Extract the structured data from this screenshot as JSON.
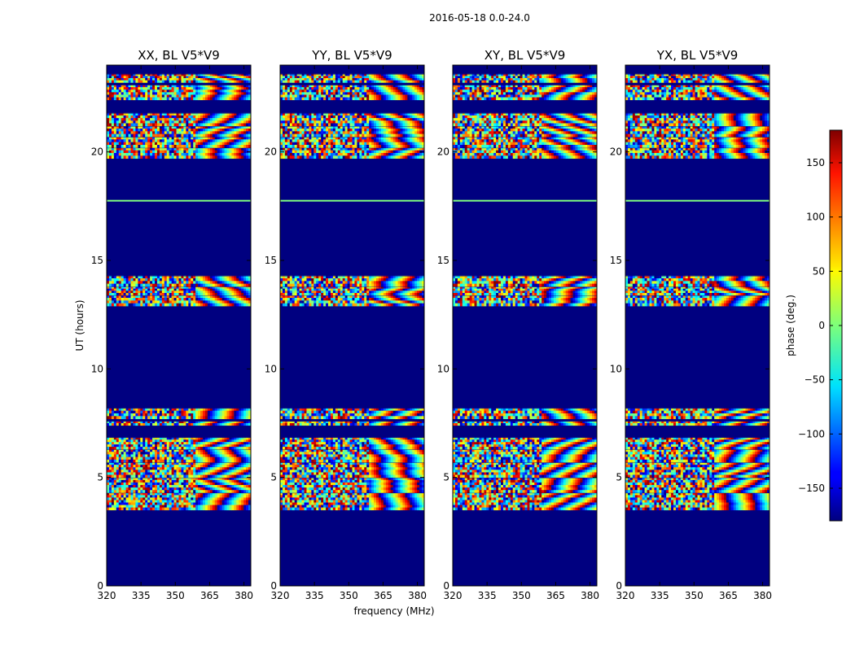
{
  "figure": {
    "suptitle": "2016-05-18 0.0-24.0"
  },
  "chart_data": {
    "type": "heatmap",
    "title": "2016-05-18 0.0-24.0",
    "xlabel": "frequency (MHz)",
    "ylabel": "UT (hours)",
    "xlim": [
      320,
      383
    ],
    "ylim": [
      0,
      24
    ],
    "x_ticks": [
      320,
      335,
      350,
      365,
      380
    ],
    "y_ticks": [
      0,
      5,
      10,
      15,
      20
    ],
    "panels": [
      {
        "title": "XX, BL V5*V9"
      },
      {
        "title": "YY, BL V5*V9"
      },
      {
        "title": "XY, BL V5*V9"
      },
      {
        "title": "YX, BL V5*V9"
      }
    ],
    "data_bands_hours": [
      [
        3.5,
        4.3
      ],
      [
        4.3,
        5.0
      ],
      [
        5.0,
        5.7
      ],
      [
        5.7,
        6.3
      ],
      [
        6.3,
        6.85
      ],
      [
        7.4,
        7.6
      ],
      [
        7.7,
        8.2
      ],
      [
        12.9,
        13.4
      ],
      [
        13.4,
        13.8
      ],
      [
        13.8,
        14.3
      ],
      [
        19.7,
        20.2
      ],
      [
        20.2,
        20.7
      ],
      [
        20.7,
        21.2
      ],
      [
        21.2,
        21.8
      ],
      [
        22.4,
        23.1
      ],
      [
        23.2,
        23.6
      ]
    ],
    "flat_lines_hours": [
      17.75
    ],
    "colorbar": {
      "label": "phase (deg.)",
      "range": [
        -180,
        180
      ],
      "ticks": [
        -150,
        -100,
        -50,
        0,
        50,
        100,
        150
      ],
      "tick_labels": [
        "−150",
        "−100",
        "−50",
        "0",
        "50",
        "100",
        "150"
      ],
      "colormap": "jet"
    }
  }
}
